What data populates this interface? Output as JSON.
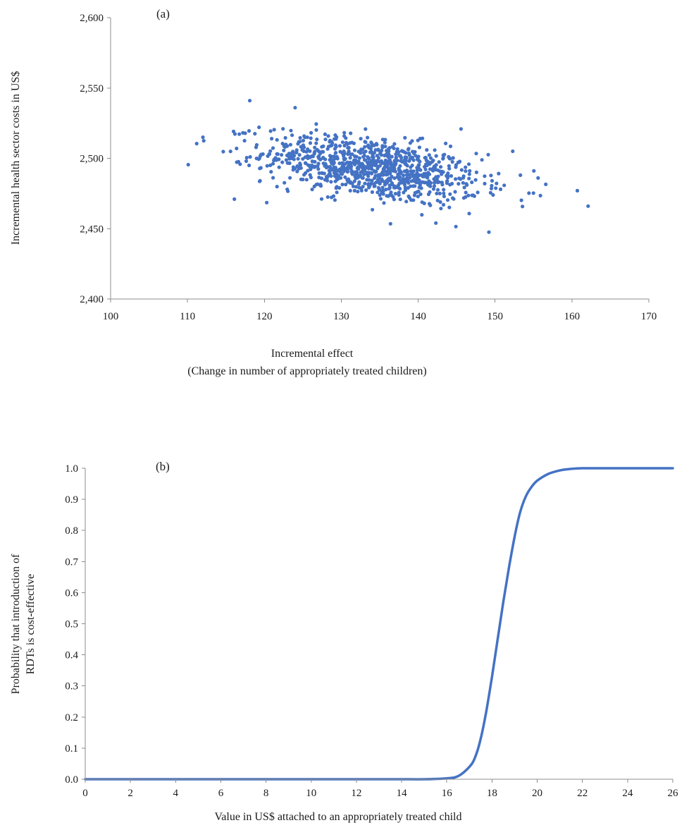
{
  "colors": {
    "series": "#4472c4",
    "axis": "#8c8c8c",
    "text": "#1a1a1a"
  },
  "chart_data": [
    {
      "type": "scatter",
      "panel_label": "(a)",
      "xlabel": "Incremental effect",
      "xlabel_sub": "(Change in number of appropriately treated children)",
      "ylabel": "Incremental health sector costs in US$",
      "xlim": [
        100,
        170
      ],
      "ylim": [
        2400,
        2600
      ],
      "x_ticks": [
        100,
        110,
        120,
        130,
        140,
        150,
        160,
        170
      ],
      "y_ticks": [
        2400,
        2450,
        2500,
        2550,
        2600
      ],
      "x_tick_labels": [
        "100",
        "110",
        "120",
        "130",
        "140",
        "150",
        "160",
        "170"
      ],
      "y_tick_labels": [
        "2,400",
        "2,450",
        "2,500",
        "2,550",
        "2,600"
      ],
      "grid": false,
      "legend": "none",
      "point_cloud": {
        "n_points": 1000,
        "center": [
          134,
          2493
        ],
        "sd": [
          7,
          12
        ],
        "correlation": -0.45,
        "seed": 12345
      },
      "outliers": [
        {
          "x": 110.1,
          "y": 2495.5
        },
        {
          "x": 111.2,
          "y": 2510.5
        },
        {
          "x": 112.0,
          "y": 2515.0
        },
        {
          "x": 116.1,
          "y": 2471.0
        },
        {
          "x": 118.1,
          "y": 2541.0
        },
        {
          "x": 120.3,
          "y": 2468.5
        },
        {
          "x": 124.0,
          "y": 2536.0
        },
        {
          "x": 136.4,
          "y": 2453.5
        },
        {
          "x": 142.3,
          "y": 2454.0
        },
        {
          "x": 144.9,
          "y": 2451.5
        },
        {
          "x": 149.2,
          "y": 2447.5
        },
        {
          "x": 152.3,
          "y": 2505.0
        },
        {
          "x": 153.3,
          "y": 2488.0
        },
        {
          "x": 155.6,
          "y": 2486.0
        },
        {
          "x": 155.9,
          "y": 2473.5
        },
        {
          "x": 156.6,
          "y": 2481.5
        },
        {
          "x": 160.7,
          "y": 2477.0
        },
        {
          "x": 162.1,
          "y": 2466.0
        }
      ]
    },
    {
      "type": "line",
      "panel_label": "(b)",
      "xlabel": "Value in US$ attached to an appropriately treated child",
      "ylabel": "Probability that introduction of",
      "ylabel_line2": "RDTs is cost-effective",
      "xlim": [
        0,
        26
      ],
      "ylim": [
        0,
        1
      ],
      "x_ticks": [
        0,
        2,
        4,
        6,
        8,
        10,
        12,
        14,
        16,
        18,
        20,
        22,
        24,
        26
      ],
      "y_ticks": [
        0,
        0.1,
        0.2,
        0.3,
        0.4,
        0.5,
        0.6,
        0.7,
        0.8,
        0.9,
        1.0
      ],
      "x_tick_labels": [
        "0",
        "2",
        "4",
        "6",
        "8",
        "10",
        "12",
        "14",
        "16",
        "18",
        "20",
        "22",
        "24",
        "26"
      ],
      "y_tick_labels": [
        "0.0",
        "0.1",
        "0.2",
        "0.3",
        "0.4",
        "0.5",
        "0.6",
        "0.7",
        "0.8",
        "0.9",
        "1.0"
      ],
      "grid": false,
      "legend": "none",
      "series": [
        {
          "x": [
            0,
            2,
            4,
            6,
            8,
            10,
            12,
            14,
            15,
            16,
            16.5,
            17,
            17.25,
            17.5,
            17.75,
            18,
            18.25,
            18.5,
            18.75,
            19,
            19.25,
            19.5,
            19.75,
            20,
            20.5,
            21,
            21.5,
            22,
            23,
            24,
            25,
            26
          ],
          "y": [
            0,
            0,
            0,
            0,
            0,
            0,
            0,
            0,
            0,
            0.003,
            0.01,
            0.04,
            0.07,
            0.13,
            0.22,
            0.33,
            0.45,
            0.57,
            0.68,
            0.78,
            0.86,
            0.91,
            0.94,
            0.96,
            0.982,
            0.993,
            0.998,
            1.0,
            1.0,
            1.0,
            1.0,
            1.0
          ]
        }
      ]
    }
  ]
}
